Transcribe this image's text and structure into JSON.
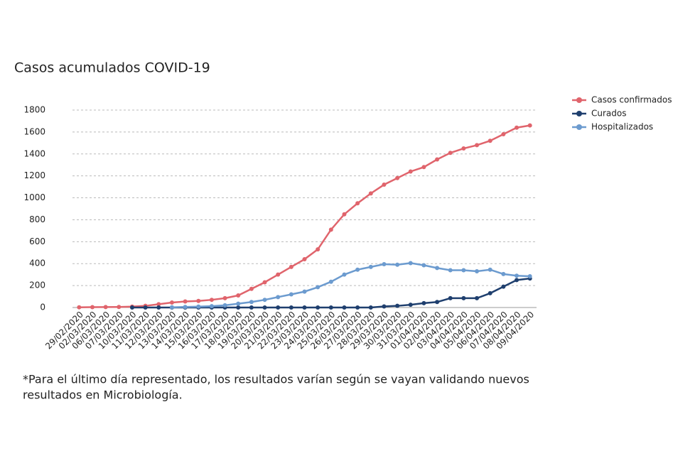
{
  "chart_data": {
    "type": "line",
    "title": "Casos acumulados COVID-19",
    "categories": [
      "29/02/2020",
      "02/03/2020",
      "06/03/2020",
      "07/03/2020",
      "10/03/2020",
      "11/03/2020",
      "12/03/2020",
      "13/03/2020",
      "14/03/2020",
      "15/03/2020",
      "16/03/2020",
      "17/03/2020",
      "18/03/2020",
      "19/03/2020",
      "20/03/2020",
      "21/03/2020",
      "22/03/2020",
      "23/03/2020",
      "24/03/2020",
      "25/03/2020",
      "26/03/2020",
      "27/03/2020",
      "28/03/2020",
      "29/03/2020",
      "30/03/2020",
      "31/03/2020",
      "01/04/2020",
      "02/04/2020",
      "03/04/2020",
      "04/04/2020",
      "05/04/2020",
      "06/04/2020",
      "07/04/2020",
      "08/04/2020",
      "09/04/2020"
    ],
    "series": [
      {
        "name": "Casos confirmados",
        "color": "#e0646c",
        "values": [
          2,
          3,
          4,
          5,
          8,
          15,
          30,
          45,
          55,
          60,
          70,
          85,
          110,
          170,
          230,
          300,
          370,
          440,
          530,
          710,
          850,
          950,
          1040,
          1120,
          1180,
          1240,
          1280,
          1350,
          1410,
          1450,
          1480,
          1520,
          1580,
          1640,
          1660
        ]
      },
      {
        "name": "Curados",
        "color": "#1f3f6e",
        "values": [
          null,
          null,
          null,
          null,
          0,
          0,
          0,
          0,
          0,
          0,
          0,
          0,
          0,
          0,
          0,
          0,
          0,
          0,
          0,
          0,
          0,
          0,
          0,
          10,
          15,
          25,
          40,
          50,
          85,
          85,
          85,
          130,
          190,
          250,
          265
        ]
      },
      {
        "name": "Hospitalizados",
        "color": "#6c9bcf",
        "values": [
          null,
          null,
          null,
          null,
          null,
          null,
          null,
          2,
          5,
          8,
          12,
          20,
          35,
          50,
          70,
          95,
          120,
          145,
          185,
          235,
          300,
          345,
          370,
          395,
          390,
          405,
          385,
          360,
          340,
          340,
          330,
          345,
          305,
          290,
          285
        ]
      }
    ],
    "ylim": [
      0,
      1800
    ],
    "yticks": [
      0,
      200,
      400,
      600,
      800,
      1000,
      1200,
      1400,
      1600,
      1800
    ],
    "grid": true,
    "legend": "top-right",
    "footnote": [
      "*Para el último día representado, los resultados varían según se vayan validando nuevos",
      "resultados en Microbiología."
    ]
  }
}
